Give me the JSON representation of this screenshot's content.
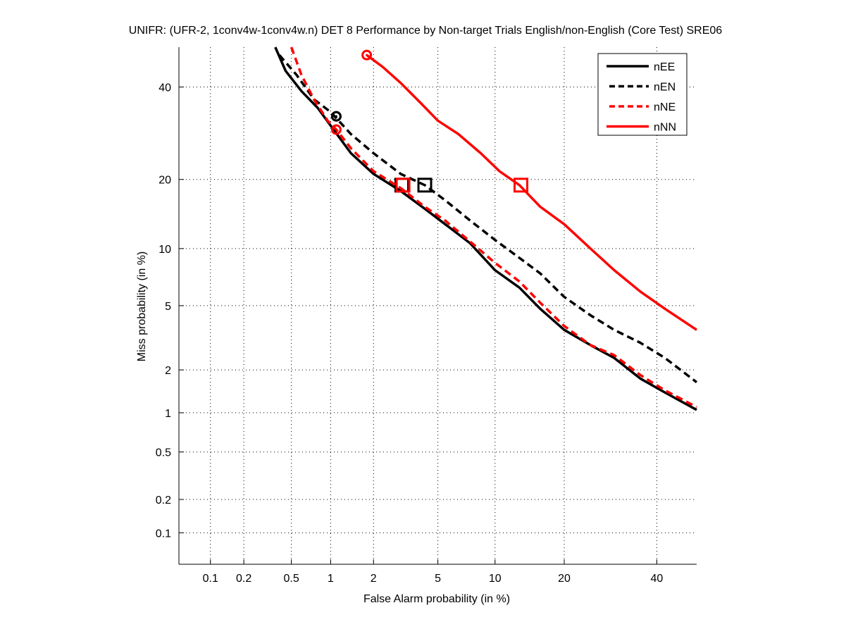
{
  "chart_data": {
    "type": "line",
    "title": "UNIFR: (UFR-2, 1conv4w-1conv4w.n) DET 8 Performance by Non-target Trials English/non-English (Core Test) SRE06",
    "xlabel": "False Alarm probability (in %)",
    "ylabel": "Miss probability (in %)",
    "xscale": "probit",
    "yscale": "probit",
    "xlim": [
      0.05,
      50
    ],
    "ylim": [
      0.05,
      50
    ],
    "grid": true,
    "legend_position": "top-right",
    "xticks": [
      0.1,
      0.2,
      0.5,
      1,
      2,
      5,
      10,
      20,
      40
    ],
    "xtick_labels": [
      "0.1",
      "0.2",
      "0.5",
      "1",
      "2",
      "5",
      "10",
      "20",
      "40"
    ],
    "yticks": [
      0.1,
      0.2,
      0.5,
      1,
      2,
      5,
      10,
      20,
      40
    ],
    "ytick_labels": [
      "0.1",
      "0.2",
      "0.5",
      "1",
      "2",
      "5",
      "10",
      "20",
      "40"
    ],
    "series": [
      {
        "name": "nEE",
        "color": "#000000",
        "style": "solid",
        "x": [
          0.37,
          0.45,
          0.6,
          0.8,
          1.05,
          1.4,
          2.0,
          3.0,
          4.2,
          5.5,
          7.5,
          10,
          13,
          16,
          20,
          25,
          30,
          36,
          42,
          50
        ],
        "y": [
          50,
          44,
          39,
          35,
          30,
          25,
          21,
          18,
          15.2,
          13,
          10.6,
          7.8,
          6.3,
          4.8,
          3.6,
          2.9,
          2.4,
          1.75,
          1.4,
          1.05
        ],
        "min_dcf_point": {
          "x": 1.1,
          "y": 33,
          "marker": "circle"
        },
        "eer_point": {
          "x": 3.05,
          "y": 19,
          "marker": "square"
        }
      },
      {
        "name": "nEN",
        "color": "#000000",
        "style": "dashed",
        "x": [
          0.4,
          0.55,
          0.75,
          1.0,
          1.4,
          2.0,
          3.0,
          4.2,
          5.5,
          7.5,
          10,
          13,
          16,
          20,
          25,
          30,
          36,
          42,
          50
        ],
        "y": [
          48,
          43,
          37,
          34,
          29,
          25,
          21,
          19,
          16.5,
          13.5,
          11,
          9,
          7.5,
          5.6,
          4.4,
          3.6,
          3.0,
          2.4,
          1.65
        ],
        "min_dcf_point": {
          "x": 1.1,
          "y": 33,
          "marker": "circle"
        },
        "eer_point": {
          "x": 4.2,
          "y": 19,
          "marker": "square"
        }
      },
      {
        "name": "nNE",
        "color": "#ff0000",
        "style": "dashed",
        "x": [
          0.5,
          0.6,
          0.75,
          0.95,
          1.1,
          1.4,
          2.0,
          3.0,
          4.2,
          5.5,
          7.5,
          10,
          13,
          16,
          20,
          25,
          30,
          36,
          42,
          50
        ],
        "y": [
          50,
          43,
          37,
          32,
          30,
          26,
          21.5,
          18.5,
          15.5,
          13.5,
          10.8,
          8.5,
          6.8,
          5.2,
          3.8,
          2.9,
          2.5,
          1.85,
          1.45,
          1.1
        ],
        "min_dcf_point": {
          "x": 1.1,
          "y": 30,
          "marker": "circle"
        },
        "eer_point": {
          "x": 3.1,
          "y": 19,
          "marker": "square"
        }
      },
      {
        "name": "nNN",
        "color": "#ff0000",
        "style": "solid",
        "x": [
          1.8,
          2.3,
          3.0,
          4.0,
          5.0,
          6.5,
          8.5,
          10.5,
          13,
          16,
          20,
          25,
          30,
          36,
          42,
          50
        ],
        "y": [
          48,
          45,
          41,
          36,
          32,
          29,
          25,
          21.5,
          19,
          15.5,
          13,
          10,
          7.8,
          6.0,
          4.8,
          3.6
        ],
        "min_dcf_point": {
          "x": 1.8,
          "y": 48,
          "marker": "circle"
        },
        "eer_point": {
          "x": 13.2,
          "y": 19,
          "marker": "square"
        }
      }
    ]
  }
}
